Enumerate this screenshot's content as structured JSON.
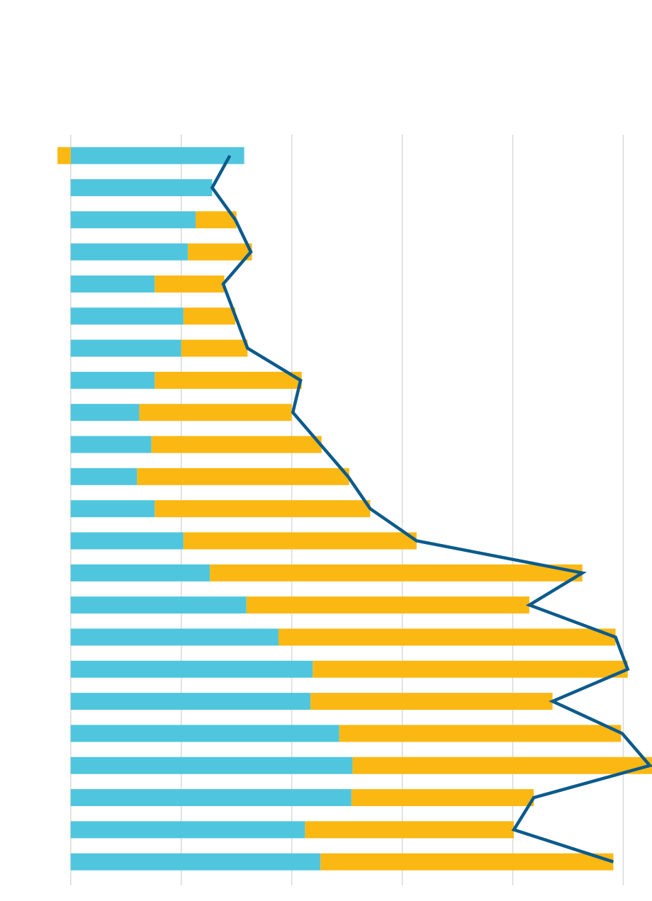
{
  "chart_data": {
    "type": "bar",
    "orientation": "horizontal",
    "stacked": true,
    "categories": [
      null,
      null,
      null,
      null,
      null,
      null,
      null,
      null,
      null,
      null,
      null,
      null,
      null,
      null,
      null,
      null,
      null,
      null,
      null,
      null,
      null,
      null,
      null
    ],
    "series": [
      {
        "type": "bar",
        "color": "#4fc6de",
        "values": [
          15.7,
          12.8,
          11.3,
          10.6,
          7.6,
          10.2,
          10.0,
          7.6,
          6.2,
          7.3,
          6.0,
          7.6,
          10.2,
          12.6,
          15.9,
          18.8,
          21.9,
          21.7,
          24.3,
          25.5,
          25.4,
          21.2,
          22.6
        ]
      },
      {
        "type": "bar",
        "color": "#fbb813",
        "values": [
          -1.2,
          0,
          3.7,
          5.8,
          6.3,
          4.7,
          6.0,
          13.3,
          13.8,
          15.4,
          19.2,
          19.5,
          21.1,
          33.7,
          25.6,
          30.5,
          28.5,
          21.9,
          25.5,
          27.1,
          16.5,
          18.9,
          26.5
        ]
      },
      {
        "type": "line",
        "color": "#0b5b8c",
        "values": [
          14.4,
          12.8,
          14.9,
          16.3,
          13.8,
          14.9,
          16.0,
          20.8,
          20.1,
          22.6,
          25.1,
          27.1,
          31.3,
          46.3,
          41.5,
          49.3,
          50.4,
          43.6,
          49.9,
          52.4,
          41.9,
          40.1,
          49.1
        ]
      }
    ],
    "xlim": [
      -6.4,
      52.6
    ],
    "xticks": [
      0,
      10,
      20,
      30,
      40,
      50
    ],
    "grid": true
  }
}
